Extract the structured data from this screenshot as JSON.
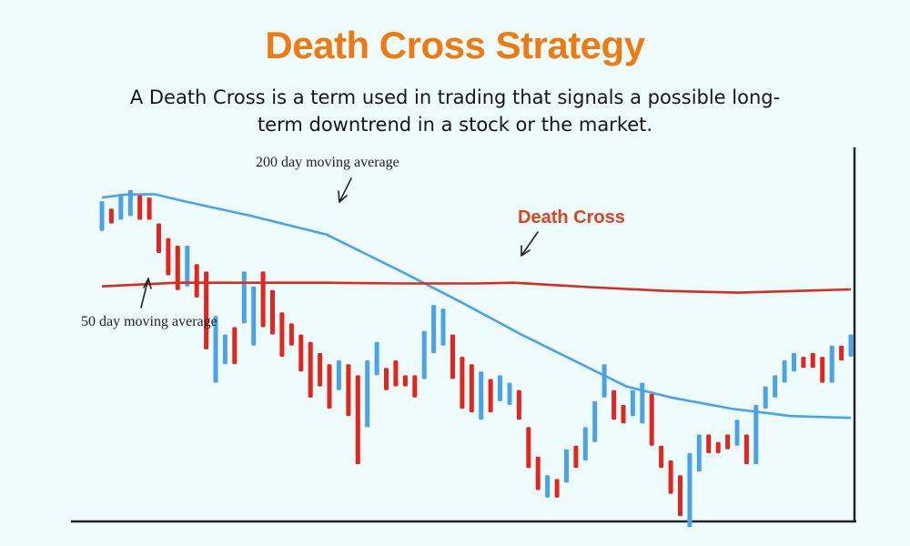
{
  "title": "Death Cross Strategy",
  "subtitle": "A Death Cross is a term used in trading that signals a possible long-term downtrend in a stock or the market.",
  "colors": {
    "title": "#f07a10",
    "up": "#4aa3ea",
    "down": "#e5241b",
    "ma200": "#4aa3ea",
    "ma50": "#dd2a1e",
    "death_cross_label": "#e0421e",
    "background": "#eefcfd"
  },
  "chart_data": {
    "type": "candlestick",
    "annotations": {
      "ma200_label": "200 day moving average",
      "ma50_label": "50 day moving average",
      "cross_label": "Death Cross"
    },
    "axes": {
      "ticks": false,
      "grid": false,
      "y_range": [
        0,
        100
      ]
    },
    "candles": [
      {
        "d": "up",
        "o": 76,
        "c": 84
      },
      {
        "d": "down",
        "o": 82,
        "c": 78
      },
      {
        "d": "up",
        "o": 79,
        "c": 86
      },
      {
        "d": "up",
        "o": 80,
        "c": 87
      },
      {
        "d": "down",
        "o": 86,
        "c": 79
      },
      {
        "d": "down",
        "o": 85,
        "c": 79
      },
      {
        "d": "down",
        "o": 78,
        "c": 70
      },
      {
        "d": "down",
        "o": 74,
        "c": 64
      },
      {
        "d": "down",
        "o": 72,
        "c": 60
      },
      {
        "d": "up",
        "o": 61,
        "c": 72
      },
      {
        "d": "down",
        "o": 67,
        "c": 58
      },
      {
        "d": "down",
        "o": 65,
        "c": 44
      },
      {
        "d": "up",
        "o": 35,
        "c": 53
      },
      {
        "d": "up",
        "o": 40,
        "c": 48
      },
      {
        "d": "down",
        "o": 50,
        "c": 40
      },
      {
        "d": "up",
        "o": 51,
        "c": 65
      },
      {
        "d": "up",
        "o": 45,
        "c": 61
      },
      {
        "d": "down",
        "o": 65,
        "c": 50
      },
      {
        "d": "down",
        "o": 60,
        "c": 48
      },
      {
        "d": "down",
        "o": 54,
        "c": 42
      },
      {
        "d": "down",
        "o": 51,
        "c": 45
      },
      {
        "d": "down",
        "o": 48,
        "c": 38
      },
      {
        "d": "down",
        "o": 46,
        "c": 31
      },
      {
        "d": "down",
        "o": 43,
        "c": 34
      },
      {
        "d": "down",
        "o": 40,
        "c": 28
      },
      {
        "d": "up",
        "o": 33,
        "c": 41
      },
      {
        "d": "down",
        "o": 40,
        "c": 26
      },
      {
        "d": "down",
        "o": 37,
        "c": 13
      },
      {
        "d": "up",
        "o": 23,
        "c": 41
      },
      {
        "d": "up",
        "o": 37,
        "c": 46
      },
      {
        "d": "down",
        "o": 39,
        "c": 33
      },
      {
        "d": "down",
        "o": 41,
        "c": 34
      },
      {
        "d": "down",
        "o": 37,
        "c": 34
      },
      {
        "d": "down",
        "o": 37,
        "c": 31
      },
      {
        "d": "up",
        "o": 36,
        "c": 49
      },
      {
        "d": "up",
        "o": 43,
        "c": 56
      },
      {
        "d": "up",
        "o": 45,
        "c": 55
      },
      {
        "d": "down",
        "o": 48,
        "c": 36
      },
      {
        "d": "down",
        "o": 42,
        "c": 28
      },
      {
        "d": "down",
        "o": 40,
        "c": 27
      },
      {
        "d": "up",
        "o": 25,
        "c": 38
      },
      {
        "d": "down",
        "o": 36,
        "c": 27
      },
      {
        "d": "up",
        "o": 30,
        "c": 37
      },
      {
        "d": "up",
        "o": 29,
        "c": 35
      },
      {
        "d": "down",
        "o": 33,
        "c": 25
      },
      {
        "d": "down",
        "o": 23,
        "c": 12
      },
      {
        "d": "down",
        "o": 15,
        "c": 6
      },
      {
        "d": "up",
        "o": 4,
        "c": 10
      },
      {
        "d": "down",
        "o": 9,
        "c": 4
      },
      {
        "d": "up",
        "o": 8,
        "c": 17
      },
      {
        "d": "down",
        "o": 18,
        "c": 12
      },
      {
        "d": "up",
        "o": 14,
        "c": 23
      },
      {
        "d": "up",
        "o": 19,
        "c": 30
      },
      {
        "d": "up",
        "o": 31,
        "c": 40
      },
      {
        "d": "down",
        "o": 33,
        "c": 25
      },
      {
        "d": "down",
        "o": 29,
        "c": 24
      },
      {
        "d": "up",
        "o": 26,
        "c": 33
      },
      {
        "d": "up",
        "o": 24,
        "c": 35
      },
      {
        "d": "down",
        "o": 32,
        "c": 18
      },
      {
        "d": "down",
        "o": 18,
        "c": 12
      },
      {
        "d": "down",
        "o": 14,
        "c": 5
      },
      {
        "d": "down",
        "o": 10,
        "c": -1
      },
      {
        "d": "up",
        "o": -4,
        "c": 16
      },
      {
        "d": "up",
        "o": 11,
        "c": 21
      },
      {
        "d": "down",
        "o": 21,
        "c": 16
      },
      {
        "d": "down",
        "o": 19,
        "c": 16
      },
      {
        "d": "down",
        "o": 21,
        "c": 17
      },
      {
        "d": "up",
        "o": 18,
        "c": 25
      },
      {
        "d": "down",
        "o": 21,
        "c": 13
      },
      {
        "d": "up",
        "o": 13,
        "c": 29
      },
      {
        "d": "up",
        "o": 28,
        "c": 34
      },
      {
        "d": "up",
        "o": 31,
        "c": 37
      },
      {
        "d": "up",
        "o": 35,
        "c": 41
      },
      {
        "d": "up",
        "o": 38,
        "c": 43
      },
      {
        "d": "down",
        "o": 42,
        "c": 39
      },
      {
        "d": "down",
        "o": 43,
        "c": 39
      },
      {
        "d": "down",
        "o": 42,
        "c": 35
      },
      {
        "d": "up",
        "o": 35,
        "c": 45
      },
      {
        "d": "down",
        "o": 45,
        "c": 41
      },
      {
        "d": "up",
        "o": 42,
        "c": 48
      }
    ],
    "ma200": [
      [
        0,
        85
      ],
      [
        3.2,
        85.8
      ],
      [
        7,
        85.9
      ],
      [
        11,
        84
      ],
      [
        20,
        80
      ],
      [
        30,
        75
      ],
      [
        40,
        65
      ],
      [
        48,
        56.7
      ],
      [
        56,
        48
      ],
      [
        63,
        41
      ],
      [
        70,
        34
      ],
      [
        76,
        31
      ],
      [
        84,
        28
      ],
      [
        92,
        26
      ],
      [
        100,
        25.5
      ]
    ],
    "ma50": [
      [
        0,
        61
      ],
      [
        10,
        62
      ],
      [
        20,
        62
      ],
      [
        30,
        62
      ],
      [
        40,
        61.8
      ],
      [
        50,
        61.8
      ],
      [
        55,
        62
      ],
      [
        65,
        60.8
      ],
      [
        75,
        59.8
      ],
      [
        85,
        59.3
      ],
      [
        100,
        60.2
      ]
    ]
  }
}
